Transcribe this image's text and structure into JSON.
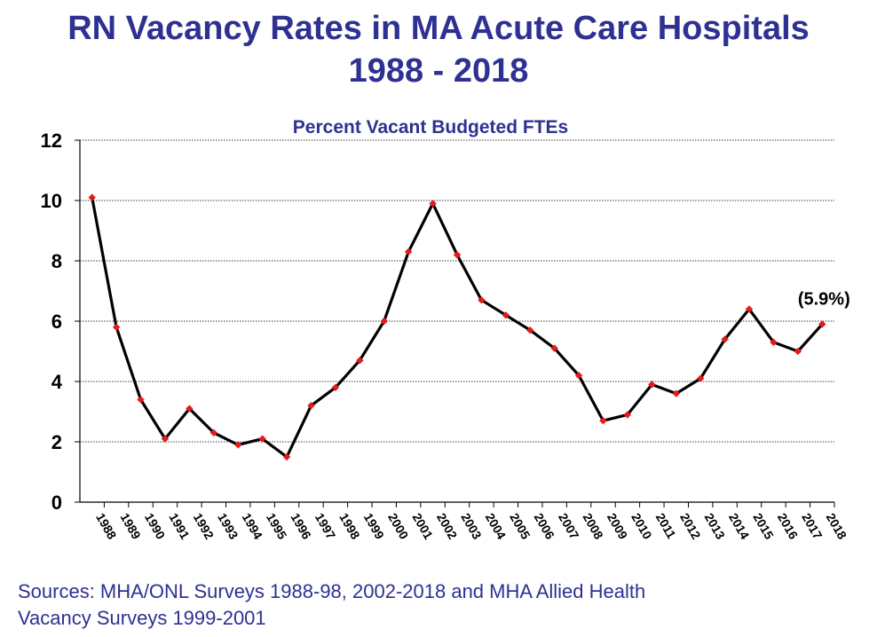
{
  "slide": {
    "title_line1": "RN Vacancy Rates in MA Acute Care Hospitals",
    "title_line2": "1988 - 2018",
    "sources_line1": "Sources: MHA/ONL Surveys 1988-98, 2002-2018 and MHA Allied Health",
    "sources_line2": "Vacancy Surveys 1999-2001"
  },
  "colors": {
    "title": "#2e3192",
    "line": "#000000",
    "marker": "#e41a1c",
    "grid": "#000000"
  },
  "chart_data": {
    "type": "line",
    "title": "Percent Vacant Budgeted FTEs",
    "xlabel": "",
    "ylabel": "",
    "ylim": [
      0,
      12
    ],
    "yticks": [
      0,
      2,
      4,
      6,
      8,
      10,
      12
    ],
    "grid": true,
    "legend": "none",
    "categories": [
      "1988",
      "1989",
      "1990",
      "1991",
      "1992",
      "1993",
      "1994",
      "1995",
      "1996",
      "1997",
      "1998",
      "1999",
      "2000",
      "2001",
      "2002",
      "2003",
      "2004",
      "2005",
      "2006",
      "2007",
      "2008",
      "2009",
      "2010",
      "2011",
      "2012",
      "2013",
      "2014",
      "2015",
      "2016",
      "2017",
      "2018"
    ],
    "series": [
      {
        "values": [
          10.1,
          5.8,
          3.4,
          2.1,
          3.1,
          2.3,
          1.9,
          2.1,
          1.5,
          3.2,
          3.8,
          4.7,
          6.0,
          8.3,
          9.9,
          8.2,
          6.7,
          6.2,
          5.7,
          5.1,
          4.2,
          2.7,
          2.9,
          3.9,
          3.6,
          4.1,
          5.4,
          6.4,
          5.3,
          5.0,
          5.9
        ]
      }
    ],
    "annotations": [
      {
        "category": "2018",
        "text": "(5.9%)"
      }
    ]
  }
}
